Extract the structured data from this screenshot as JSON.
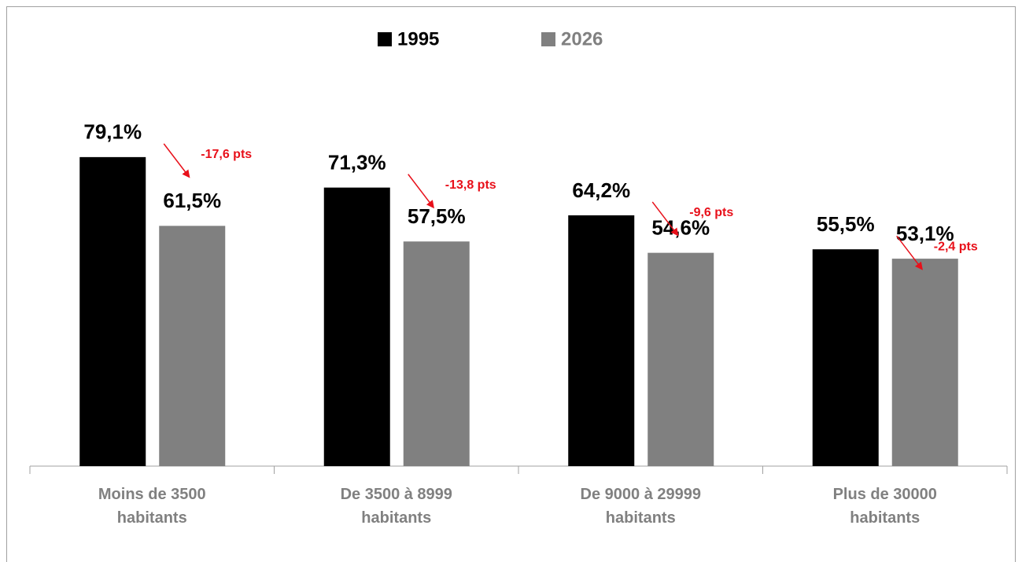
{
  "chart_data": {
    "type": "bar",
    "categories": [
      "Moins de 3500\nhabitants",
      "De 3500 à 8999\nhabitants",
      "De 9000 à 29999\nhabitants",
      "Plus de 30000\nhabitants"
    ],
    "series": [
      {
        "name": "1995",
        "color": "#000000",
        "values": [
          79.1,
          71.3,
          64.2,
          55.5
        ],
        "value_labels": [
          "79,1%",
          "71,3%",
          "64,2%",
          "55,5%"
        ]
      },
      {
        "name": "2026",
        "color": "#808080",
        "values": [
          61.5,
          57.5,
          54.6,
          53.1
        ],
        "value_labels": [
          "61,5%",
          "57,5%",
          "54,6%",
          "53,1%"
        ]
      }
    ],
    "annotations": [
      "-17,6 pts",
      "-13,8 pts",
      "-9,6 pts",
      "-2,4 pts"
    ],
    "annotation_color": "#e8101a",
    "ylim": [
      0,
      100
    ],
    "legend": "top"
  }
}
